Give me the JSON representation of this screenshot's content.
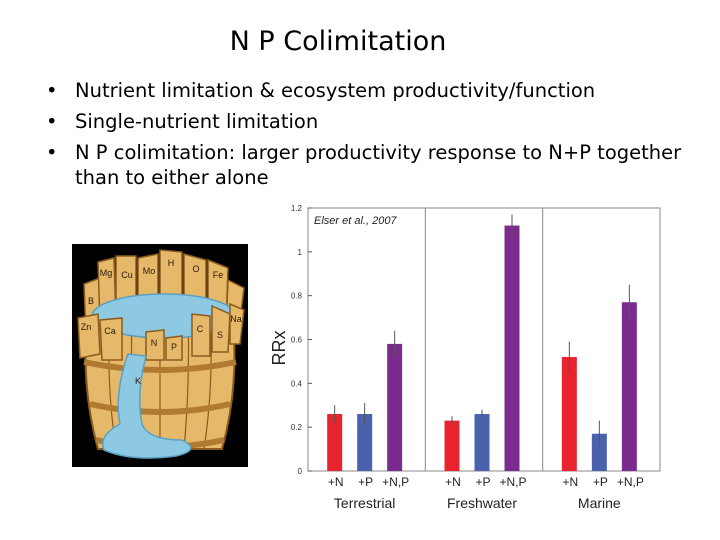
{
  "slide": {
    "title": "N P Colimitation",
    "bullets": [
      "Nutrient limitation & ecosystem productivity/function",
      "Single-nutrient limitation",
      "N P colimitation: larger productivity response to N+P together than to either alone"
    ]
  },
  "barrel": {
    "stave_labels": [
      "Mg",
      "Cu",
      "Mo",
      "H",
      "O",
      "Fe",
      "B",
      "Na",
      "Zn",
      "Ca",
      "N",
      "P",
      "C",
      "S",
      "K"
    ],
    "colors": {
      "wood": "#e6b96a",
      "wood_dark": "#8a5a1e",
      "water": "#8ec9e4",
      "background": "#000000"
    }
  },
  "chart_data": {
    "type": "bar",
    "title": "",
    "annotation": "Elser et al., 2007",
    "ylabel": "RRx",
    "ylim": [
      0,
      1.2
    ],
    "yticks": [
      "0",
      "0.2",
      "0.4",
      "0.6",
      "0.8",
      "1",
      "1.2"
    ],
    "groups": [
      {
        "name": "Terrestrial",
        "bars": [
          {
            "label": "+N",
            "value": 0.26,
            "err": 0.04,
            "color": "#e8242f"
          },
          {
            "label": "+P",
            "value": 0.26,
            "err": 0.05,
            "color": "#4a61ad"
          },
          {
            "label": "+N,P",
            "value": 0.58,
            "err": 0.06,
            "color": "#7b2b8e"
          }
        ]
      },
      {
        "name": "Freshwater",
        "bars": [
          {
            "label": "+N",
            "value": 0.23,
            "err": 0.02,
            "color": "#e8242f"
          },
          {
            "label": "+P",
            "value": 0.26,
            "err": 0.02,
            "color": "#4a61ad"
          },
          {
            "label": "+N,P",
            "value": 1.12,
            "err": 0.05,
            "color": "#7b2b8e"
          }
        ]
      },
      {
        "name": "Marine",
        "bars": [
          {
            "label": "+N",
            "value": 0.52,
            "err": 0.07,
            "color": "#e8242f"
          },
          {
            "label": "+P",
            "value": 0.17,
            "err": 0.06,
            "color": "#4a61ad"
          },
          {
            "label": "+N,P",
            "value": 0.77,
            "err": 0.08,
            "color": "#7b2b8e"
          }
        ]
      }
    ]
  }
}
